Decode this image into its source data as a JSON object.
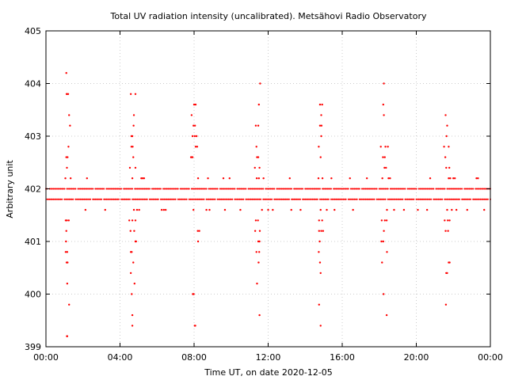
{
  "chart_data": {
    "type": "scatter",
    "title": "Total UV radiation intensity (uncalibrated). Metsähovi Radio Observatory",
    "xlabel": "Time UT, on date 2020-12-05",
    "ylabel": "Arbitrary unit",
    "xlim": [
      "00:00",
      "24:00"
    ],
    "ylim": [
      399,
      405
    ],
    "x_ticks": [
      "00:00",
      "04:00",
      "08:00",
      "12:00",
      "16:00",
      "20:00",
      "00:00"
    ],
    "y_ticks": [
      "399",
      "400",
      "401",
      "402",
      "403",
      "404",
      "405"
    ],
    "grid": true,
    "legend": "none",
    "marker_color": "#ff0000",
    "series": [
      {
        "baseline": {
          "levels": [
            401.8,
            402.0
          ],
          "x_start": "00:00",
          "x_end": "24:00"
        },
        "outliers": [
          {
            "x": "01:06",
            "y": 404.2
          },
          {
            "x": "01:07",
            "y": 403.8
          },
          {
            "x": "01:08",
            "y": 403.8
          },
          {
            "x": "01:12",
            "y": 403.8
          },
          {
            "x": "01:15",
            "y": 403.4
          },
          {
            "x": "01:18",
            "y": 403.2
          },
          {
            "x": "01:13",
            "y": 402.8
          },
          {
            "x": "01:06",
            "y": 402.6
          },
          {
            "x": "01:10",
            "y": 402.6
          },
          {
            "x": "01:08",
            "y": 402.4
          },
          {
            "x": "01:03",
            "y": 402.2
          },
          {
            "x": "01:20",
            "y": 402.2
          },
          {
            "x": "01:04",
            "y": 401.4
          },
          {
            "x": "01:08",
            "y": 401.4
          },
          {
            "x": "01:14",
            "y": 401.4
          },
          {
            "x": "01:06",
            "y": 401.2
          },
          {
            "x": "01:05",
            "y": 401.0
          },
          {
            "x": "01:04",
            "y": 400.8
          },
          {
            "x": "01:09",
            "y": 400.8
          },
          {
            "x": "01:07",
            "y": 400.6
          },
          {
            "x": "01:10",
            "y": 400.6
          },
          {
            "x": "01:09",
            "y": 400.2
          },
          {
            "x": "01:15",
            "y": 399.8
          },
          {
            "x": "01:08",
            "y": 399.2
          },
          {
            "x": "01:09",
            "y": 399.2
          },
          {
            "x": "02:13",
            "y": 402.2
          },
          {
            "x": "02:08",
            "y": 401.6
          },
          {
            "x": "03:12",
            "y": 401.6
          },
          {
            "x": "04:35",
            "y": 403.8
          },
          {
            "x": "04:50",
            "y": 403.8
          },
          {
            "x": "04:45",
            "y": 403.4
          },
          {
            "x": "04:44",
            "y": 403.2
          },
          {
            "x": "04:37",
            "y": 403.0
          },
          {
            "x": "04:40",
            "y": 403.0
          },
          {
            "x": "04:37",
            "y": 402.8
          },
          {
            "x": "04:41",
            "y": 402.8
          },
          {
            "x": "04:43",
            "y": 402.6
          },
          {
            "x": "04:32",
            "y": 402.4
          },
          {
            "x": "04:50",
            "y": 402.4
          },
          {
            "x": "04:40",
            "y": 402.2
          },
          {
            "x": "05:09",
            "y": 402.2
          },
          {
            "x": "05:13",
            "y": 402.2
          },
          {
            "x": "05:18",
            "y": 402.2
          },
          {
            "x": "04:45",
            "y": 401.6
          },
          {
            "x": "04:55",
            "y": 401.6
          },
          {
            "x": "05:02",
            "y": 401.6
          },
          {
            "x": "04:30",
            "y": 401.4
          },
          {
            "x": "04:40",
            "y": 401.4
          },
          {
            "x": "04:50",
            "y": 401.4
          },
          {
            "x": "04:34",
            "y": 401.2
          },
          {
            "x": "04:46",
            "y": 401.2
          },
          {
            "x": "04:52",
            "y": 401.0
          },
          {
            "x": "04:50",
            "y": 401.0
          },
          {
            "x": "04:35",
            "y": 400.8
          },
          {
            "x": "04:38",
            "y": 400.8
          },
          {
            "x": "04:43",
            "y": 400.6
          },
          {
            "x": "04:35",
            "y": 400.4
          },
          {
            "x": "04:47",
            "y": 400.2
          },
          {
            "x": "04:38",
            "y": 400.0
          },
          {
            "x": "04:40",
            "y": 399.6
          },
          {
            "x": "04:40",
            "y": 399.4
          },
          {
            "x": "06:15",
            "y": 401.6
          },
          {
            "x": "06:22",
            "y": 401.6
          },
          {
            "x": "06:28",
            "y": 401.6
          },
          {
            "x": "08:00",
            "y": 403.6
          },
          {
            "x": "08:05",
            "y": 403.6
          },
          {
            "x": "07:52",
            "y": 403.4
          },
          {
            "x": "07:58",
            "y": 403.2
          },
          {
            "x": "08:03",
            "y": 403.2
          },
          {
            "x": "07:55",
            "y": 403.0
          },
          {
            "x": "08:02",
            "y": 403.0
          },
          {
            "x": "08:08",
            "y": 403.0
          },
          {
            "x": "08:10",
            "y": 402.8
          },
          {
            "x": "08:05",
            "y": 402.8
          },
          {
            "x": "07:50",
            "y": 402.6
          },
          {
            "x": "07:52",
            "y": 402.6
          },
          {
            "x": "07:55",
            "y": 402.6
          },
          {
            "x": "08:13",
            "y": 402.2
          },
          {
            "x": "08:45",
            "y": 402.2
          },
          {
            "x": "07:58",
            "y": 401.6
          },
          {
            "x": "08:40",
            "y": 401.6
          },
          {
            "x": "08:50",
            "y": 401.6
          },
          {
            "x": "08:12",
            "y": 401.2
          },
          {
            "x": "08:17",
            "y": 401.2
          },
          {
            "x": "08:13",
            "y": 401.0
          },
          {
            "x": "07:56",
            "y": 400.0
          },
          {
            "x": "07:59",
            "y": 400.0
          },
          {
            "x": "08:02",
            "y": 399.4
          },
          {
            "x": "08:04",
            "y": 399.4
          },
          {
            "x": "09:35",
            "y": 402.2
          },
          {
            "x": "09:40",
            "y": 401.6
          },
          {
            "x": "09:55",
            "y": 402.2
          },
          {
            "x": "10:30",
            "y": 401.6
          },
          {
            "x": "11:34",
            "y": 404.0
          },
          {
            "x": "11:30",
            "y": 403.6
          },
          {
            "x": "11:20",
            "y": 403.2
          },
          {
            "x": "11:28",
            "y": 403.2
          },
          {
            "x": "11:22",
            "y": 402.8
          },
          {
            "x": "11:24",
            "y": 402.6
          },
          {
            "x": "11:28",
            "y": 402.6
          },
          {
            "x": "11:17",
            "y": 402.4
          },
          {
            "x": "11:32",
            "y": 402.4
          },
          {
            "x": "11:23",
            "y": 402.2
          },
          {
            "x": "11:30",
            "y": 402.2
          },
          {
            "x": "11:45",
            "y": 402.2
          },
          {
            "x": "11:40",
            "y": 401.6
          },
          {
            "x": "12:00",
            "y": 401.6
          },
          {
            "x": "12:15",
            "y": 401.6
          },
          {
            "x": "11:20",
            "y": 401.4
          },
          {
            "x": "11:27",
            "y": 401.4
          },
          {
            "x": "11:18",
            "y": 401.2
          },
          {
            "x": "11:33",
            "y": 401.2
          },
          {
            "x": "11:28",
            "y": 401.0
          },
          {
            "x": "11:32",
            "y": 401.0
          },
          {
            "x": "11:22",
            "y": 400.8
          },
          {
            "x": "11:31",
            "y": 400.8
          },
          {
            "x": "11:29",
            "y": 400.6
          },
          {
            "x": "11:24",
            "y": 400.2
          },
          {
            "x": "11:32",
            "y": 399.6
          },
          {
            "x": "13:10",
            "y": 402.2
          },
          {
            "x": "13:15",
            "y": 401.6
          },
          {
            "x": "13:45",
            "y": 401.6
          },
          {
            "x": "14:48",
            "y": 403.6
          },
          {
            "x": "14:55",
            "y": 403.6
          },
          {
            "x": "14:52",
            "y": 403.4
          },
          {
            "x": "14:48",
            "y": 403.2
          },
          {
            "x": "14:53",
            "y": 403.2
          },
          {
            "x": "14:52",
            "y": 403.0
          },
          {
            "x": "14:44",
            "y": 402.8
          },
          {
            "x": "14:50",
            "y": 402.6
          },
          {
            "x": "14:43",
            "y": 402.2
          },
          {
            "x": "14:56",
            "y": 402.2
          },
          {
            "x": "15:25",
            "y": 402.2
          },
          {
            "x": "14:50",
            "y": 401.6
          },
          {
            "x": "15:10",
            "y": 401.6
          },
          {
            "x": "15:35",
            "y": 401.6
          },
          {
            "x": "14:45",
            "y": 401.4
          },
          {
            "x": "14:55",
            "y": 401.4
          },
          {
            "x": "14:45",
            "y": 401.2
          },
          {
            "x": "14:52",
            "y": 401.2
          },
          {
            "x": "14:58",
            "y": 401.2
          },
          {
            "x": "14:47",
            "y": 401.0
          },
          {
            "x": "14:44",
            "y": 400.8
          },
          {
            "x": "14:48",
            "y": 400.6
          },
          {
            "x": "14:50",
            "y": 400.4
          },
          {
            "x": "14:45",
            "y": 399.8
          },
          {
            "x": "14:50",
            "y": 399.4
          },
          {
            "x": "16:25",
            "y": 402.2
          },
          {
            "x": "16:35",
            "y": 401.6
          },
          {
            "x": "17:20",
            "y": 402.2
          },
          {
            "x": "18:15",
            "y": 404.0
          },
          {
            "x": "18:13",
            "y": 403.6
          },
          {
            "x": "18:15",
            "y": 403.4
          },
          {
            "x": "18:05",
            "y": 402.8
          },
          {
            "x": "18:20",
            "y": 402.8
          },
          {
            "x": "18:28",
            "y": 402.8
          },
          {
            "x": "18:12",
            "y": 402.6
          },
          {
            "x": "18:18",
            "y": 402.6
          },
          {
            "x": "18:22",
            "y": 402.4
          },
          {
            "x": "18:17",
            "y": 402.4
          },
          {
            "x": "18:10",
            "y": 402.2
          },
          {
            "x": "18:30",
            "y": 402.2
          },
          {
            "x": "18:35",
            "y": 402.2
          },
          {
            "x": "18:25",
            "y": 401.6
          },
          {
            "x": "18:48",
            "y": 401.6
          },
          {
            "x": "18:08",
            "y": 401.4
          },
          {
            "x": "18:18",
            "y": 401.4
          },
          {
            "x": "18:24",
            "y": 401.4
          },
          {
            "x": "18:15",
            "y": 401.2
          },
          {
            "x": "18:07",
            "y": 401.0
          },
          {
            "x": "18:13",
            "y": 401.0
          },
          {
            "x": "18:25",
            "y": 400.8
          },
          {
            "x": "18:09",
            "y": 400.6
          },
          {
            "x": "18:14",
            "y": 400.0
          },
          {
            "x": "18:24",
            "y": 399.6
          },
          {
            "x": "19:20",
            "y": 401.6
          },
          {
            "x": "20:05",
            "y": 401.6
          },
          {
            "x": "20:35",
            "y": 401.6
          },
          {
            "x": "20:45",
            "y": 402.2
          },
          {
            "x": "21:35",
            "y": 403.4
          },
          {
            "x": "21:40",
            "y": 403.2
          },
          {
            "x": "21:38",
            "y": 403.0
          },
          {
            "x": "21:30",
            "y": 402.8
          },
          {
            "x": "21:45",
            "y": 402.8
          },
          {
            "x": "21:34",
            "y": 402.6
          },
          {
            "x": "21:37",
            "y": 402.4
          },
          {
            "x": "21:47",
            "y": 402.4
          },
          {
            "x": "21:45",
            "y": 402.2
          },
          {
            "x": "21:50",
            "y": 402.2
          },
          {
            "x": "22:00",
            "y": 402.2
          },
          {
            "x": "22:05",
            "y": 402.2
          },
          {
            "x": "21:40",
            "y": 401.6
          },
          {
            "x": "21:55",
            "y": 401.6
          },
          {
            "x": "22:10",
            "y": 401.6
          },
          {
            "x": "21:32",
            "y": 401.4
          },
          {
            "x": "21:42",
            "y": 401.4
          },
          {
            "x": "21:48",
            "y": 401.4
          },
          {
            "x": "21:35",
            "y": 401.2
          },
          {
            "x": "21:43",
            "y": 401.2
          },
          {
            "x": "21:45",
            "y": 400.6
          },
          {
            "x": "21:48",
            "y": 400.6
          },
          {
            "x": "21:37",
            "y": 400.4
          },
          {
            "x": "21:40",
            "y": 400.4
          },
          {
            "x": "21:36",
            "y": 399.8
          },
          {
            "x": "22:45",
            "y": 401.6
          },
          {
            "x": "23:15",
            "y": 402.2
          },
          {
            "x": "23:20",
            "y": 402.2
          },
          {
            "x": "23:40",
            "y": 401.6
          }
        ]
      }
    ]
  }
}
